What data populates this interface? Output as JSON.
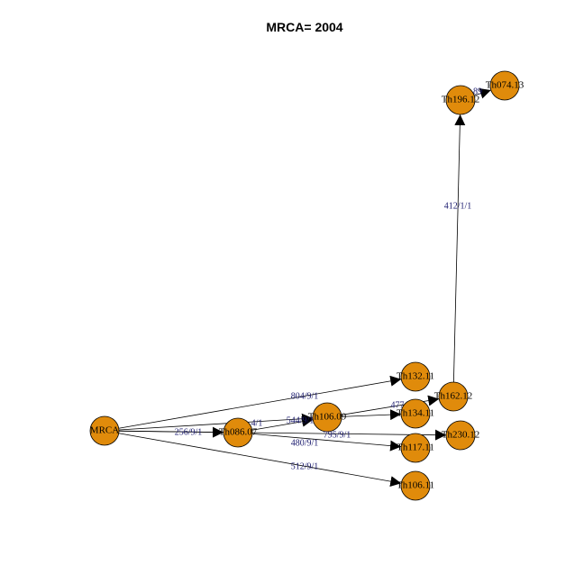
{
  "title": "MRCA= 2004",
  "colors": {
    "node_fill": "#e08b0b",
    "edge_label": "#1a1a6e"
  },
  "nodes": [
    {
      "id": "MRCA",
      "label": "MRCA"
    },
    {
      "id": "Th086.07",
      "label": "Th086.07"
    },
    {
      "id": "Th106.09",
      "label": "Th106.09"
    },
    {
      "id": "Th132.11",
      "label": "Th132.11"
    },
    {
      "id": "Th134.11",
      "label": "Th134.11"
    },
    {
      "id": "Th162.12",
      "label": "Th162.12"
    },
    {
      "id": "Th230.12",
      "label": "Th230.12"
    },
    {
      "id": "Th117.11",
      "label": "Th117.11"
    },
    {
      "id": "Th106.11",
      "label": "Th106.11"
    },
    {
      "id": "Th196.12",
      "label": "Th196.12"
    },
    {
      "id": "Th074.13",
      "label": "Th074.13"
    }
  ],
  "edges": [
    {
      "from": "MRCA",
      "to": "Th086.07",
      "label": "256/9/1"
    },
    {
      "from": "MRCA",
      "to": "Th132.11",
      "label": "804/9/1"
    },
    {
      "from": "MRCA",
      "to": "Th106.09",
      "label": "544/9/1"
    },
    {
      "from": "MRCA",
      "to": "Th230.12",
      "label": "795/9/1"
    },
    {
      "from": "MRCA",
      "to": "Th106.11",
      "label": "512/9/1"
    },
    {
      "from": "Th086.07",
      "to": "Th106.09",
      "label": "4/1"
    },
    {
      "from": "Th086.07",
      "to": "Th117.11",
      "label": "480/9/1"
    },
    {
      "from": "Th106.09",
      "to": "Th162.12",
      "label": "477"
    },
    {
      "from": "Th106.09",
      "to": "Th134.11",
      "label": ""
    },
    {
      "from": "Th162.12",
      "to": "Th196.12",
      "label": "412/1/1"
    },
    {
      "from": "Th196.12",
      "to": "Th074.13",
      "label": "89"
    }
  ]
}
